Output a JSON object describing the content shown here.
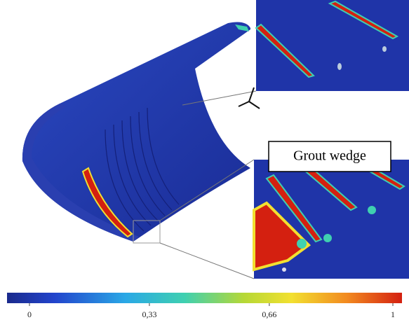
{
  "annotation": "Grout wedge",
  "colorbar": {
    "lim": [
      0,
      1
    ],
    "ticks": [
      0,
      {
        "value": 0.33,
        "label": "0,33"
      },
      {
        "value": 0.66,
        "label": "0,66"
      },
      1
    ]
  }
}
